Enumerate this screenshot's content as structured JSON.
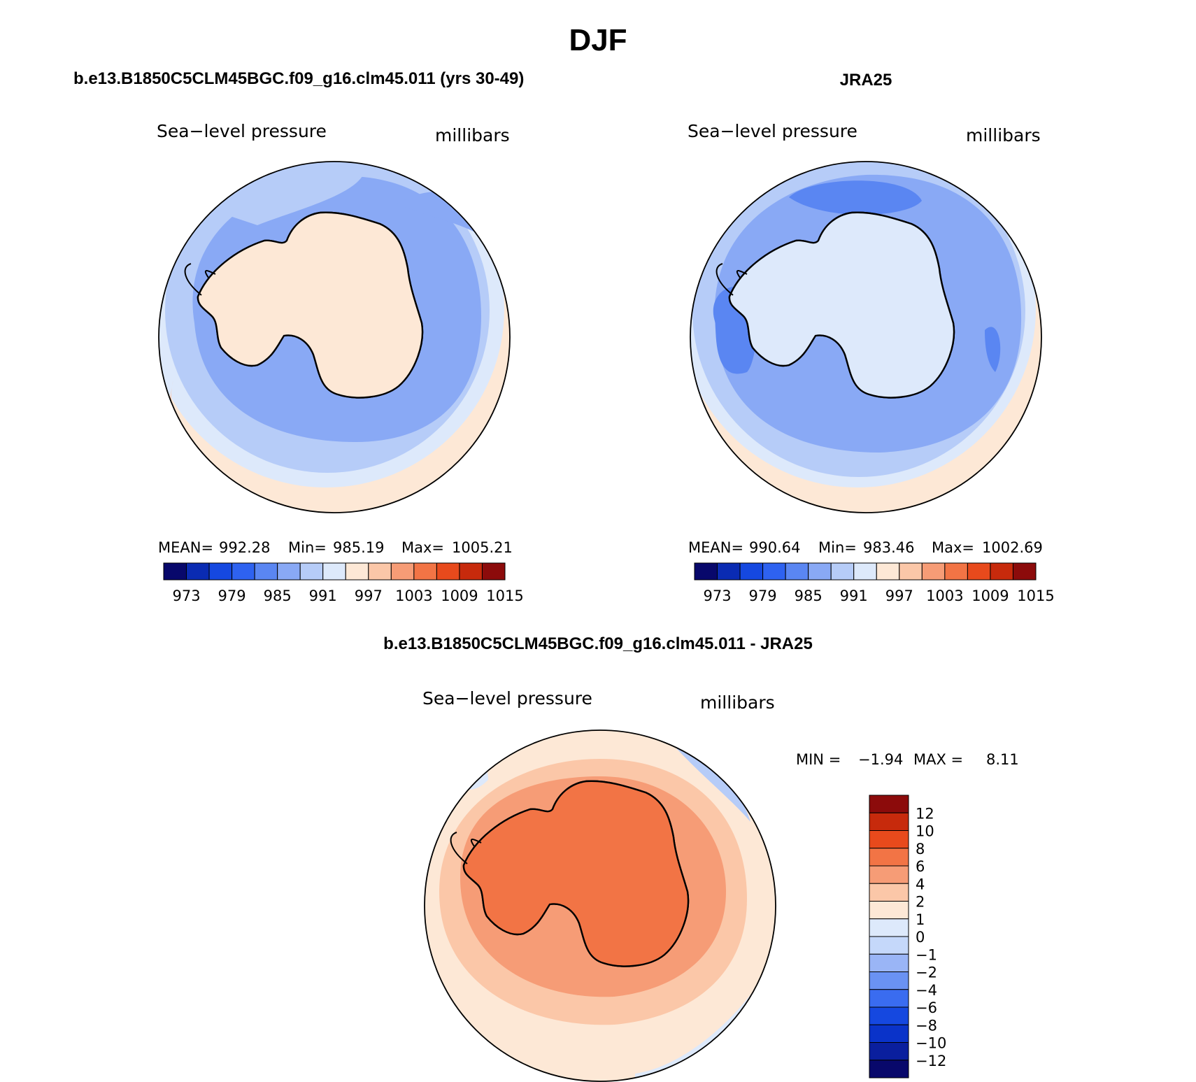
{
  "title": "DJF",
  "panels": [
    {
      "id": "model",
      "header": "b.e13.B1850C5CLM45BGC.f09_g16.clm45.011 (yrs 30-49)",
      "left_label": "Sea−level pressure",
      "right_label": "millibars",
      "stats": {
        "mean_label": "MEAN=",
        "mean": "992.28",
        "min_label": "Min=",
        "min": "985.19",
        "max_label": "Max=",
        "max": "1005.21"
      }
    },
    {
      "id": "obs",
      "header": "JRA25",
      "left_label": "Sea−level pressure",
      "right_label": "millibars",
      "stats": {
        "mean_label": "MEAN=",
        "mean": "990.64",
        "min_label": "Min=",
        "min": "983.46",
        "max_label": "Max=",
        "max": "1002.69"
      }
    },
    {
      "id": "diff",
      "header": "b.e13.B1850C5CLM45BGC.f09_g16.clm45.011 - JRA25",
      "left_label": "Sea−level pressure",
      "right_label": "millibars",
      "stats": {
        "min_label": "MIN =",
        "min": "−1.94",
        "max_label": "MAX =",
        "max": "8.11"
      }
    }
  ],
  "colorbar_abs": {
    "colors": [
      "#08086b",
      "#0a2bb3",
      "#1548e0",
      "#2e62f0",
      "#5a86f2",
      "#89a9f5",
      "#b6ccf8",
      "#dde9fb",
      "#fde8d6",
      "#fbc7a8",
      "#f69c76",
      "#f27445",
      "#e84a1c",
      "#c72a0c",
      "#8c0b0b"
    ],
    "tick_labels": [
      "973",
      "979",
      "985",
      "991",
      "997",
      "1003",
      "1009",
      "1015"
    ]
  },
  "colorbar_diff": {
    "colors": [
      "#08086b",
      "#0a1f9e",
      "#0a33c9",
      "#1548e0",
      "#3a6cf0",
      "#6a92f3",
      "#9ab5f6",
      "#c5d8fa",
      "#dde9fb",
      "#fde8d6",
      "#fbc7a8",
      "#f69c76",
      "#f27445",
      "#e84a1c",
      "#c72a0c",
      "#8c0b0b"
    ],
    "tick_labels": [
      "12",
      "10",
      "8",
      "6",
      "4",
      "2",
      "1",
      "0",
      "−1",
      "−2",
      "−4",
      "−6",
      "−8",
      "−10",
      "−12"
    ]
  }
}
